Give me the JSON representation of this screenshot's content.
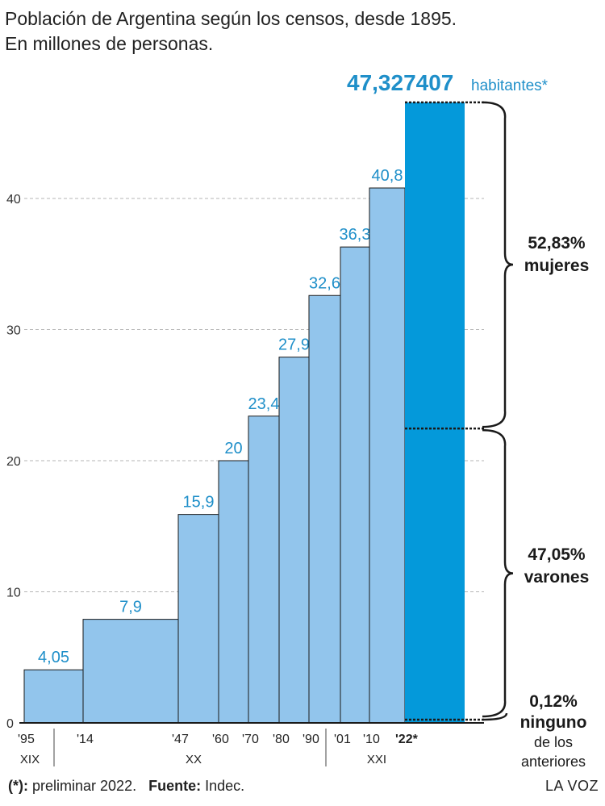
{
  "chart_data": {
    "type": "bar",
    "title": "Población de Argentina según los censos, desde 1895.",
    "subtitle": "En millones de personas.",
    "categories": [
      "'95",
      "'14",
      "'47",
      "'60",
      "'70",
      "'80",
      "'90",
      "'01",
      "'10",
      "'22*"
    ],
    "values": [
      4.05,
      7.9,
      15.9,
      20,
      23.4,
      27.9,
      32.6,
      36.3,
      40.8,
      47.327407
    ],
    "value_labels": [
      "4,05",
      "7,9",
      "15,9",
      "20",
      "23,4",
      "27,9",
      "32,6",
      "36,3",
      "40,8",
      ""
    ],
    "highlight_label": "47,327407",
    "highlight_suffix": "habitantes*",
    "yticks": [
      "0",
      "10",
      "20",
      "30",
      "40"
    ],
    "ylim": [
      0,
      50
    ],
    "grid": true,
    "centuries": [
      "XIX",
      "XX",
      "XXI"
    ],
    "bar_color": "#92c5ec",
    "highlight_color": "#0499da",
    "label_color": "#1f8fc9",
    "breakdown": [
      {
        "pct": "52,83%",
        "label": "mujeres",
        "share": 0.5283
      },
      {
        "pct": "47,05%",
        "label": "varones",
        "share": 0.4705
      },
      {
        "pct": "0,12%",
        "label": "ninguno",
        "extra": [
          "de los",
          "anteriores"
        ],
        "share": 0.0012
      }
    ]
  },
  "footer": {
    "note_mark": "(*):",
    "note_text": "preliminar 2022.",
    "source_label": "Fuente:",
    "source_text": "Indec."
  },
  "brand": "LA VOZ"
}
